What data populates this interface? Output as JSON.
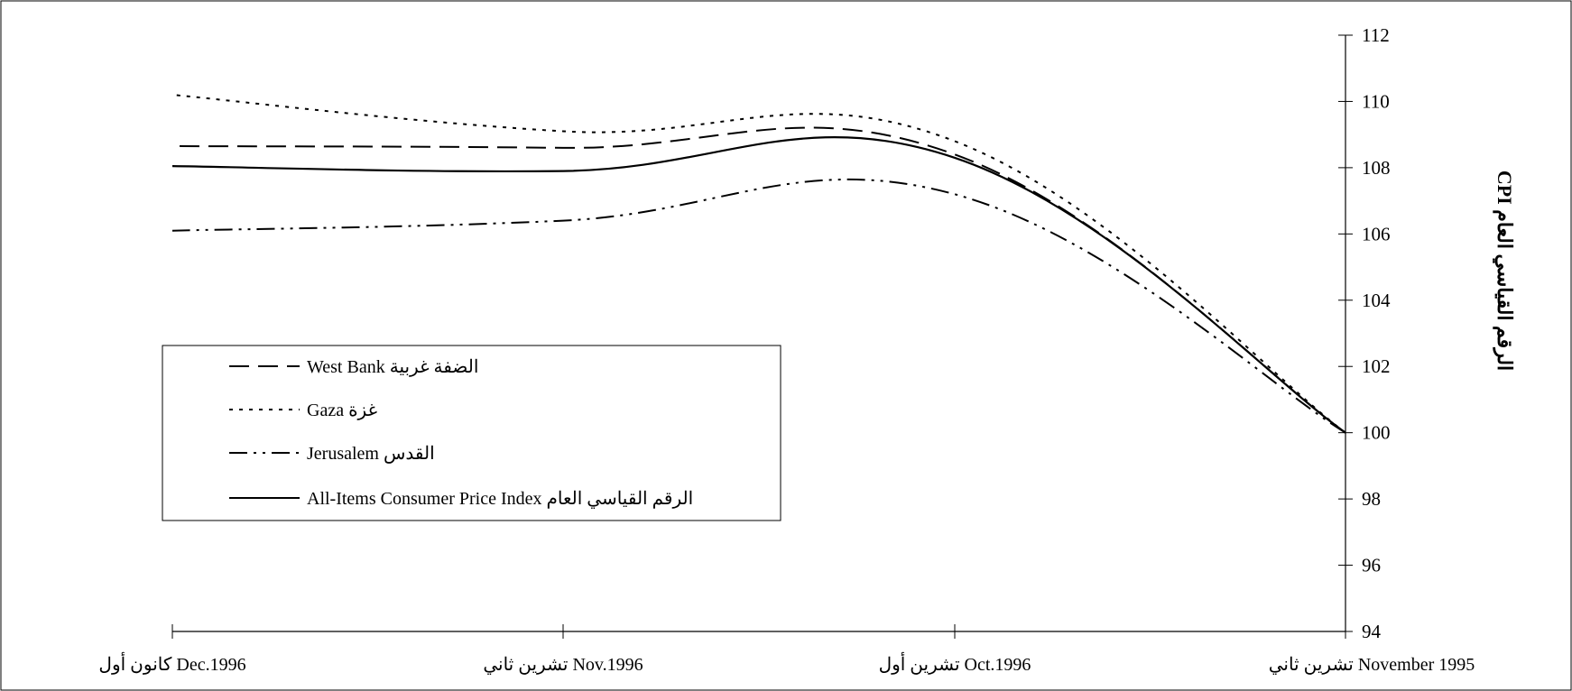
{
  "chart_data": {
    "type": "line",
    "ylabel": "CPI   الرقم القياسي العام",
    "ylim": [
      94,
      112
    ],
    "yticks": [
      94,
      96,
      98,
      100,
      102,
      104,
      106,
      108,
      110,
      112
    ],
    "x_order": "right-to-left",
    "x_labels": [
      "تشرين ثاني  November 1995",
      "تشرين أول Oct.1996",
      "تشرين ثاني Nov.1996",
      "كانون أول Dec.1996"
    ],
    "grid": false,
    "legend_position": "left-center",
    "series": [
      {
        "key": "west_bank",
        "name": "West Bank الضفة غربية",
        "style": "dashed",
        "values": [
          100,
          108.4,
          108.6,
          108.65
        ]
      },
      {
        "key": "gaza",
        "name": "Gaza غزة",
        "style": "dotted",
        "values": [
          100,
          108.8,
          109.1,
          110.2
        ]
      },
      {
        "key": "jerusalem",
        "name": "Jerusalem القدس",
        "style": "dash-dot-dot",
        "values": [
          100,
          107.2,
          106.4,
          106.1
        ]
      },
      {
        "key": "all_items",
        "name": "All-Items Consumer Price Index الرقم القياسي العام",
        "style": "solid",
        "values": [
          100,
          108.3,
          107.9,
          108.05
        ]
      }
    ]
  }
}
